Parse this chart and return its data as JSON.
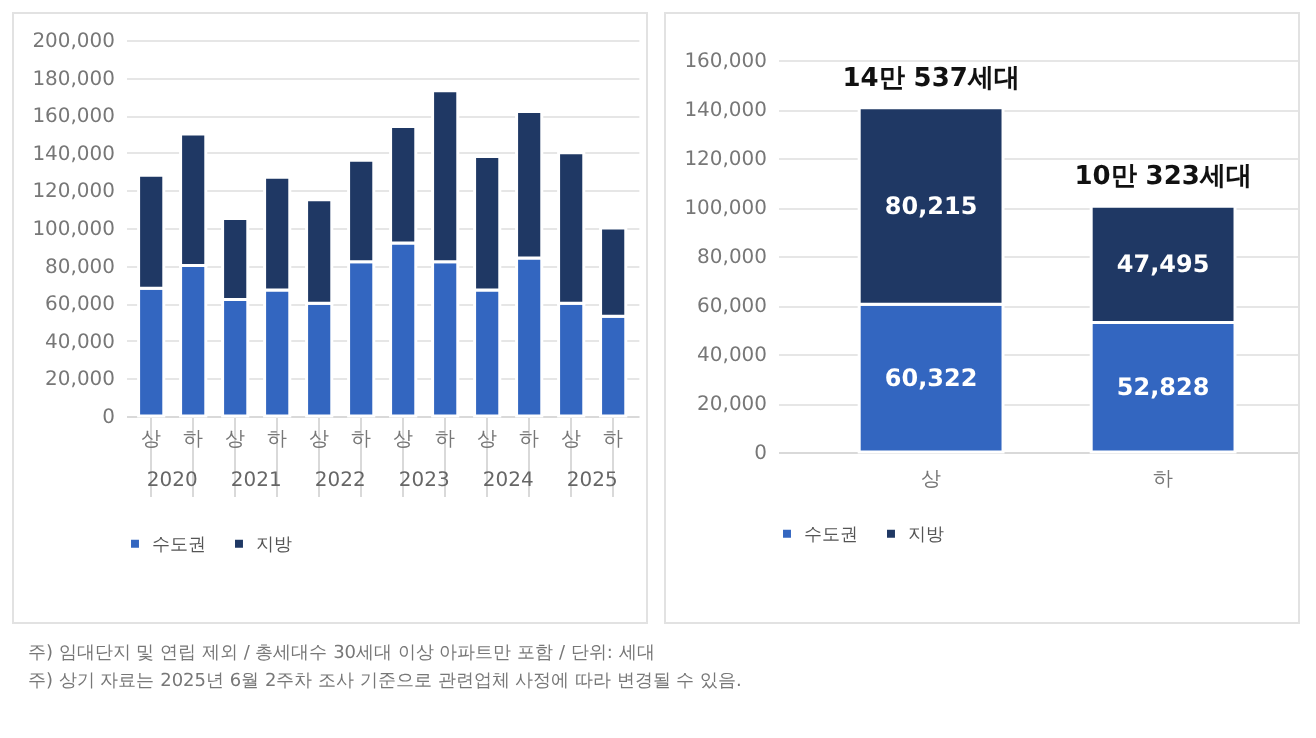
{
  "chart_data": [
    {
      "type": "bar",
      "stacked": true,
      "categories": [
        "상",
        "하",
        "상",
        "하",
        "상",
        "하",
        "상",
        "하",
        "상",
        "하",
        "상",
        "하"
      ],
      "series": [
        {
          "name": "수도권",
          "color": "#3366c0",
          "values": [
            68000,
            80000,
            62000,
            67000,
            60000,
            82000,
            92000,
            82000,
            67000,
            84000,
            60000,
            53000
          ]
        },
        {
          "name": "지방",
          "color": "#1f3864",
          "values": [
            60000,
            70000,
            43000,
            60000,
            55000,
            54000,
            62000,
            91000,
            71000,
            78000,
            80000,
            47000
          ]
        }
      ],
      "ylim": [
        0,
        200000
      ],
      "yticks": [
        0,
        {
          "value": 20000,
          "label": "20,000"
        },
        {
          "value": 40000,
          "label": "40,000"
        },
        {
          "value": 60000,
          "label": "60,000"
        },
        {
          "value": 80000,
          "label": "80,000"
        },
        {
          "value": 100000,
          "label": "100,000"
        },
        {
          "value": 120000,
          "label": "120,000"
        },
        {
          "value": 140000,
          "label": "140,000"
        },
        {
          "value": 160000,
          "label": "160,000"
        },
        {
          "value": 180000,
          "label": "180,000"
        },
        {
          "value": 200000,
          "label": "200,000"
        }
      ],
      "grid": "y",
      "legend": "bottom",
      "annotations": [
        "2020",
        "2021",
        "2022",
        "2023",
        "2024",
        "2025"
      ]
    },
    {
      "type": "bar",
      "stacked": true,
      "categories": [
        "상",
        "하"
      ],
      "series": [
        {
          "name": "수도권",
          "color": "#3366c0",
          "values": [
            60322,
            52828
          ],
          "value_labels": [
            "60,322",
            "52,828"
          ]
        },
        {
          "name": "지방",
          "color": "#1f3864",
          "values": [
            80215,
            47495
          ],
          "value_labels": [
            "80,215",
            "47,495"
          ]
        }
      ],
      "ylim": [
        0,
        160000
      ],
      "yticks": [
        0,
        {
          "value": 20000,
          "label": "20,000"
        },
        {
          "value": 40000,
          "label": "40,000"
        },
        {
          "value": 60000,
          "label": "60,000"
        },
        {
          "value": 80000,
          "label": "80,000"
        },
        {
          "value": 100000,
          "label": "100,000"
        },
        {
          "value": 120000,
          "label": "120,000"
        },
        {
          "value": 140000,
          "label": "140,000"
        },
        {
          "value": 160000,
          "label": "160,000"
        }
      ],
      "grid": "y",
      "legend": "bottom",
      "totals": [
        "14만 537세대",
        "10만 323세대"
      ],
      "annotations": [
        "주) 임대단지 및 연립 제외 / 총세대수 30세대 이상 아파트만 포함 / 단위: 세대",
        "주) 상기 자료는 2025년 6월 2주차 조사 기준으로 관련업체 사정에 따라 변경될 수 있음."
      ]
    }
  ]
}
